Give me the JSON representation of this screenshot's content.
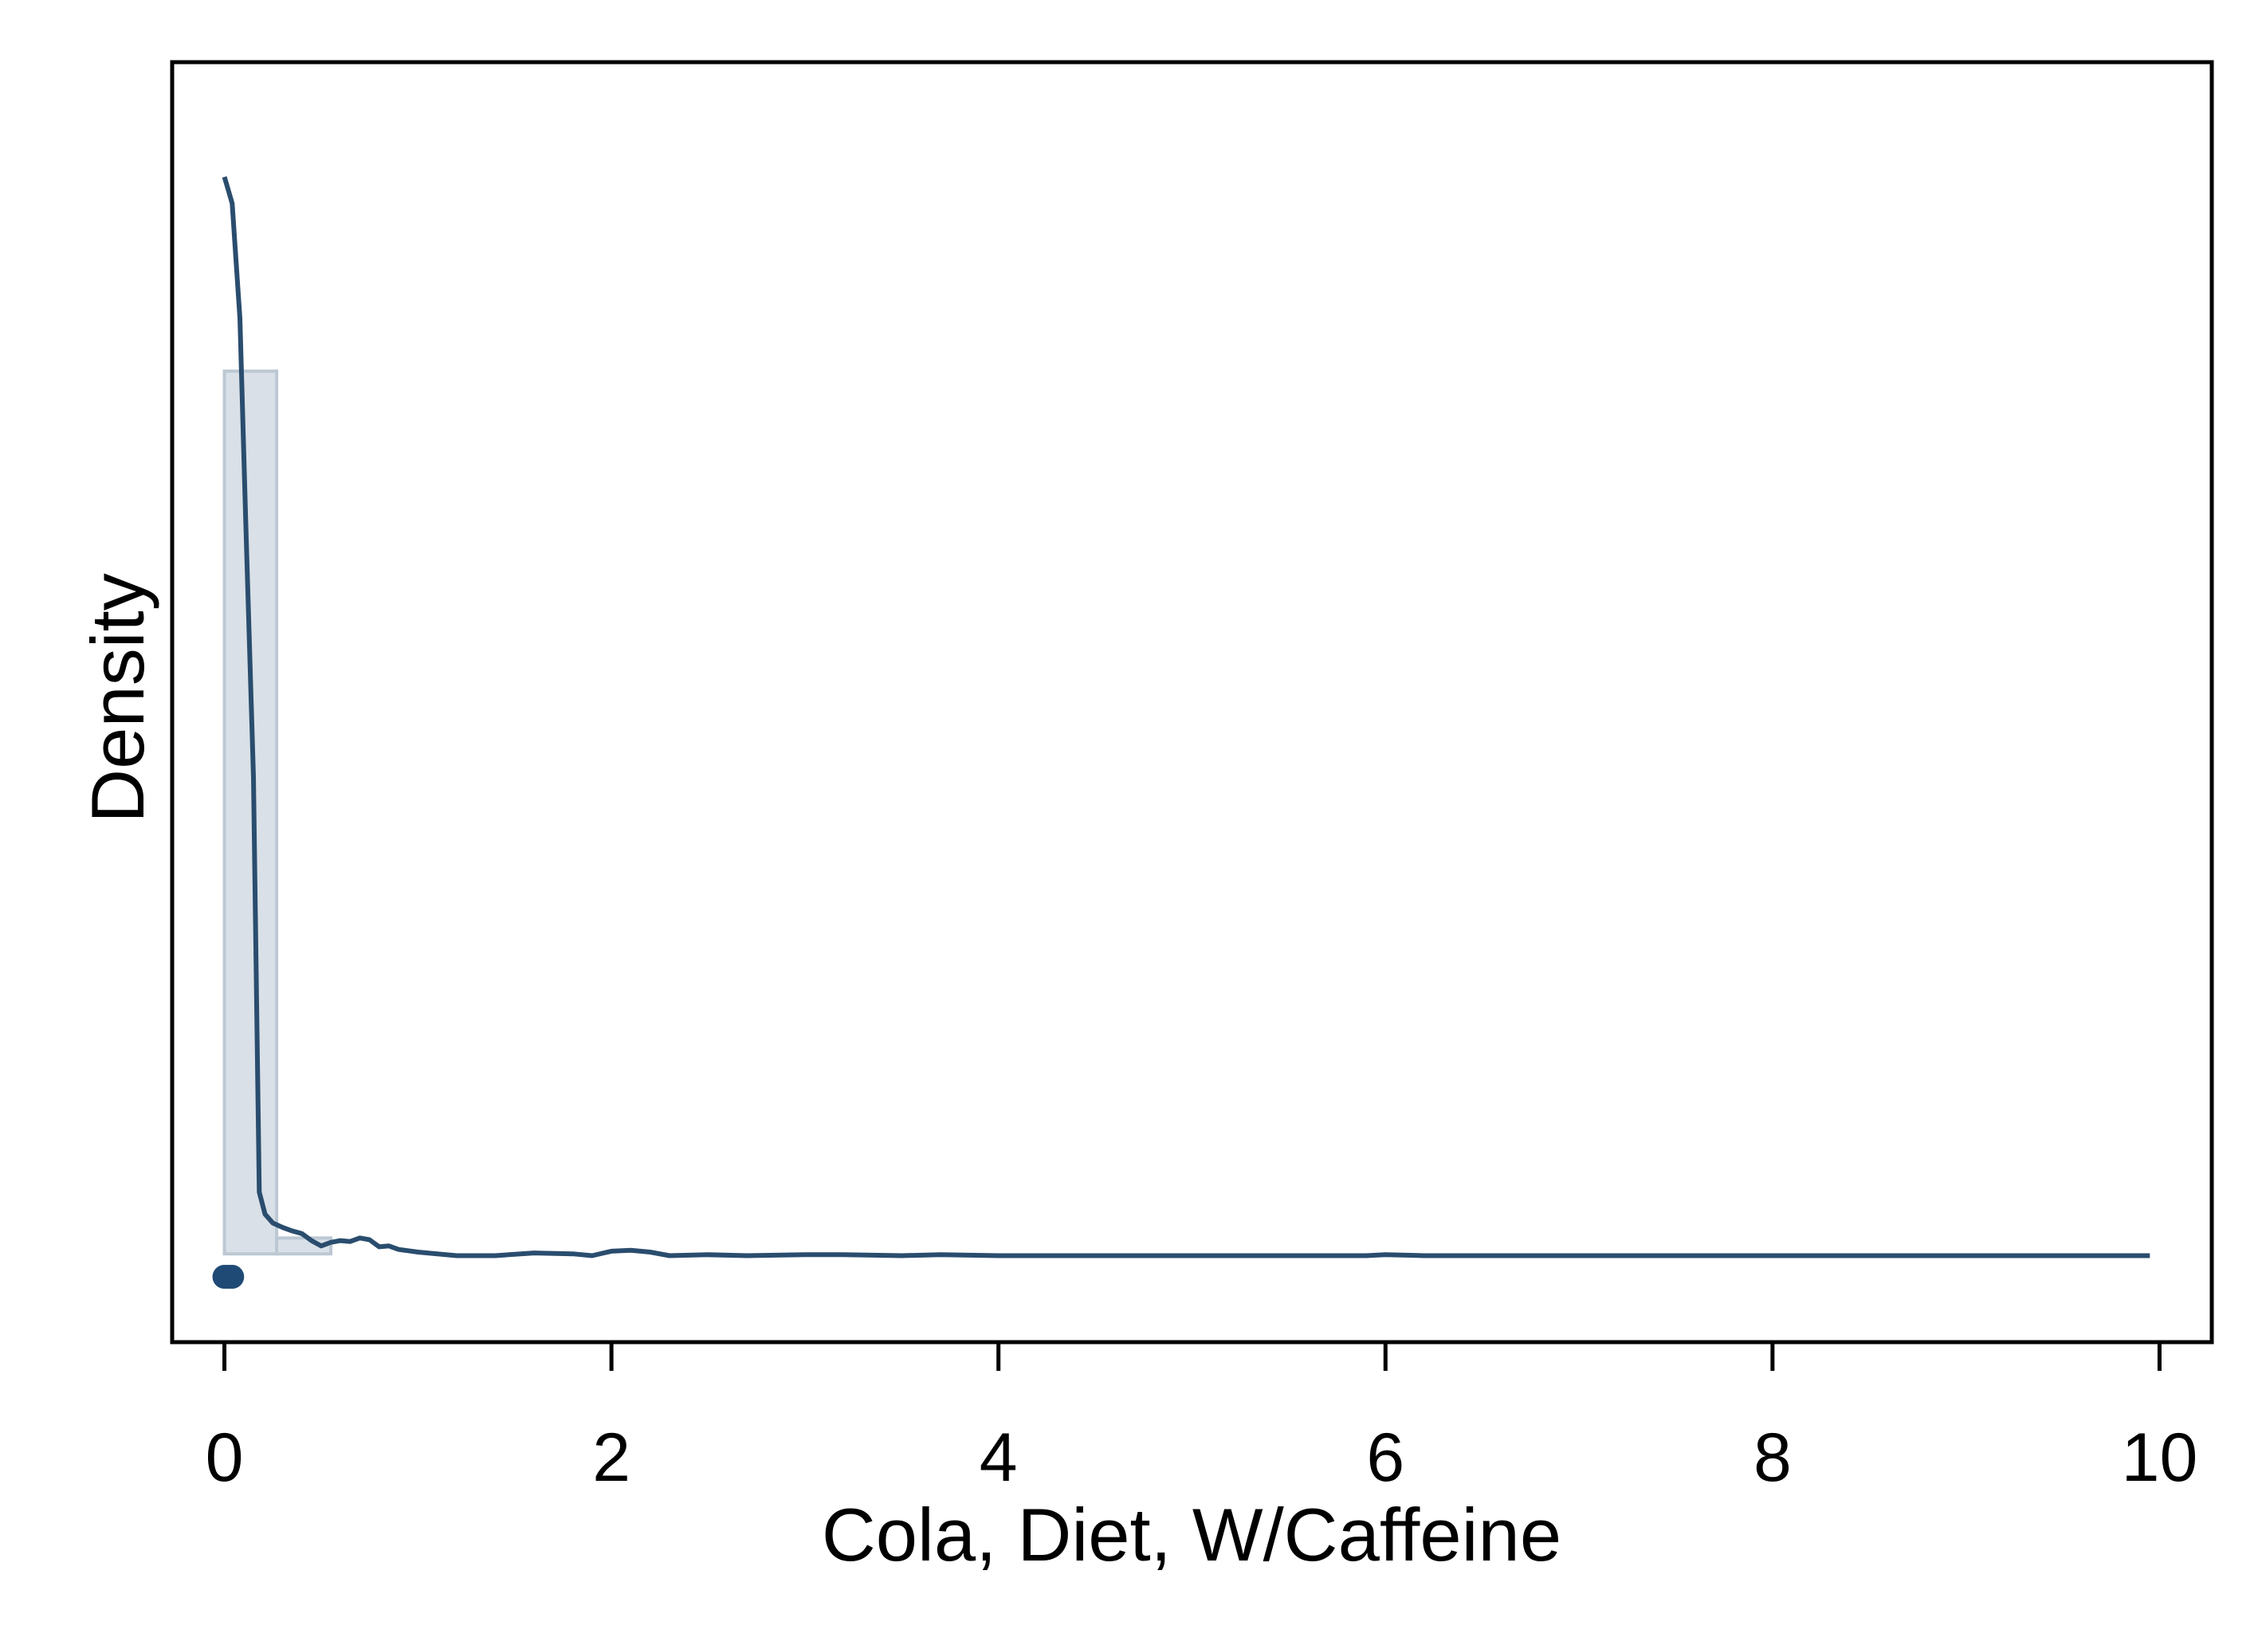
{
  "chart_data": {
    "type": "histogram",
    "xlabel": "Cola, Diet, W/Caffeine",
    "ylabel": "Density",
    "xlim": [
      -0.27,
      10.27
    ],
    "x_ticks": [
      0,
      2,
      4,
      6,
      8,
      10
    ],
    "x_tick_labels": [
      "0",
      "2",
      "4",
      "6",
      "8",
      "10"
    ],
    "y_ticks_shown": false,
    "grid": false,
    "legend": "none",
    "ylim_relative": [
      -0.1,
      1.35
    ],
    "histogram": {
      "bins": [
        {
          "x0": 0.0,
          "x1": 0.27,
          "height": 1.0
        },
        {
          "x0": 0.27,
          "x1": 0.55,
          "height": 0.018
        }
      ],
      "fill": "#d9e0e7",
      "stroke": "#bcc8d4"
    },
    "density_curve": {
      "color": "#2a4d6e",
      "x": [
        0.0,
        0.04,
        0.08,
        0.11,
        0.15,
        0.18,
        0.21,
        0.25,
        0.3,
        0.35,
        0.4,
        0.45,
        0.5,
        0.55,
        0.6,
        0.65,
        0.7,
        0.75,
        0.8,
        0.85,
        0.9,
        1.0,
        1.1,
        1.2,
        1.4,
        1.6,
        1.8,
        1.9,
        2.0,
        2.1,
        2.2,
        2.3,
        2.5,
        2.7,
        3.0,
        3.2,
        3.5,
        3.7,
        4.0,
        4.3,
        4.6,
        5.0,
        5.3,
        5.6,
        5.9,
        6.0,
        6.2,
        6.5,
        7.0,
        8.0,
        9.0,
        9.95
      ],
      "y": [
        1.22,
        1.19,
        1.06,
        0.83,
        0.54,
        0.07,
        0.045,
        0.035,
        0.03,
        0.026,
        0.023,
        0.015,
        0.009,
        0.013,
        0.015,
        0.014,
        0.018,
        0.016,
        0.008,
        0.009,
        0.005,
        0.002,
        0.0,
        -0.002,
        -0.002,
        0.001,
        0.0,
        -0.002,
        0.003,
        0.004,
        0.002,
        -0.002,
        -0.001,
        -0.002,
        -0.001,
        -0.001,
        -0.002,
        -0.001,
        -0.002,
        -0.002,
        -0.002,
        -0.002,
        -0.002,
        -0.002,
        -0.002,
        -0.001,
        -0.002,
        -0.002,
        -0.002,
        -0.002,
        -0.002,
        -0.002
      ]
    },
    "rug": {
      "points": [
        0.0,
        0.02,
        0.04
      ],
      "color": "#1f4a75"
    }
  }
}
